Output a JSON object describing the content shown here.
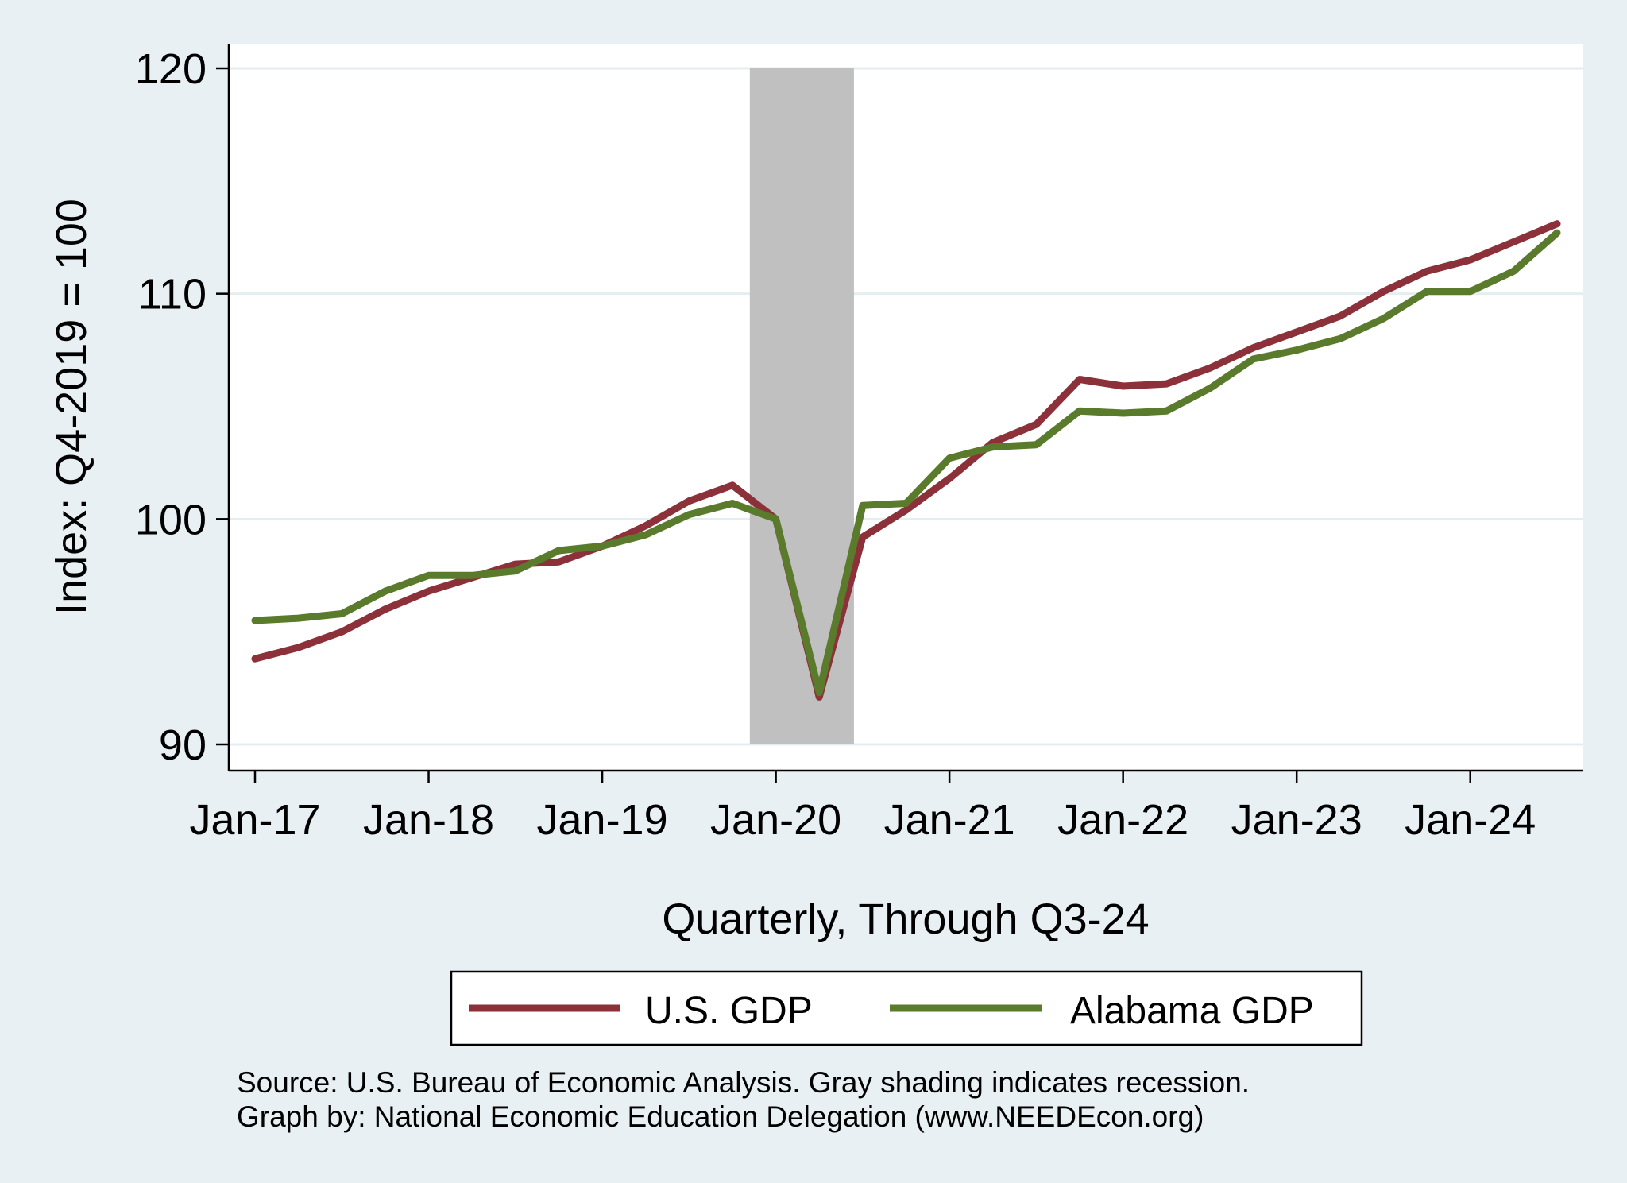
{
  "chart_data": {
    "type": "line",
    "title": "",
    "ylabel": "Index: Q4-2019 = 100",
    "xlabel": "Quarterly, Through Q3-24",
    "ylim": [
      90,
      120
    ],
    "yticks": [
      90,
      100,
      110,
      120
    ],
    "xlim": [
      2017.0,
      2024.5
    ],
    "xticks": [
      {
        "label": "Jan-17",
        "x": 2017.0
      },
      {
        "label": "Jan-18",
        "x": 2018.0
      },
      {
        "label": "Jan-19",
        "x": 2019.0
      },
      {
        "label": "Jan-20",
        "x": 2020.0
      },
      {
        "label": "Jan-21",
        "x": 2021.0
      },
      {
        "label": "Jan-22",
        "x": 2022.0
      },
      {
        "label": "Jan-23",
        "x": 2023.0
      },
      {
        "label": "Jan-24",
        "x": 2024.0
      }
    ],
    "grid": true,
    "recession": {
      "start": 2019.85,
      "end": 2020.45,
      "color": "#c0c0c0"
    },
    "x": [
      2017.0,
      2017.25,
      2017.5,
      2017.75,
      2018.0,
      2018.25,
      2018.5,
      2018.75,
      2019.0,
      2019.25,
      2019.5,
      2019.75,
      2020.0,
      2020.25,
      2020.5,
      2020.75,
      2021.0,
      2021.25,
      2021.5,
      2021.75,
      2022.0,
      2022.25,
      2022.5,
      2022.75,
      2023.0,
      2023.25,
      2023.5,
      2023.75,
      2024.0,
      2024.25,
      2024.5
    ],
    "series": [
      {
        "name": "U.S. GDP",
        "color": "#8c3139",
        "values": [
          93.8,
          94.3,
          95.0,
          96.0,
          96.8,
          97.4,
          98.0,
          98.1,
          98.8,
          99.7,
          100.8,
          101.5,
          100.0,
          92.1,
          99.2,
          100.4,
          101.8,
          103.4,
          104.2,
          106.2,
          105.9,
          106.0,
          106.7,
          107.6,
          108.3,
          109.0,
          110.1,
          111.0,
          111.5,
          112.3,
          113.1
        ]
      },
      {
        "name": "Alabama GDP",
        "color": "#5a7a2c",
        "values": [
          95.5,
          95.6,
          95.8,
          96.8,
          97.5,
          97.5,
          97.7,
          98.6,
          98.8,
          99.3,
          100.2,
          100.7,
          100.0,
          92.3,
          100.6,
          100.7,
          102.7,
          103.2,
          103.3,
          104.8,
          104.7,
          104.8,
          105.8,
          107.1,
          107.5,
          108.0,
          108.9,
          110.1,
          110.1,
          111.0,
          112.7
        ]
      }
    ],
    "legend": {
      "position": "bottom"
    },
    "note_lines": [
      "Source: U.S. Bureau of Economic Analysis. Gray shading indicates recession.",
      "Graph by: National Economic Education Delegation (www.NEEDEcon.org)"
    ]
  }
}
